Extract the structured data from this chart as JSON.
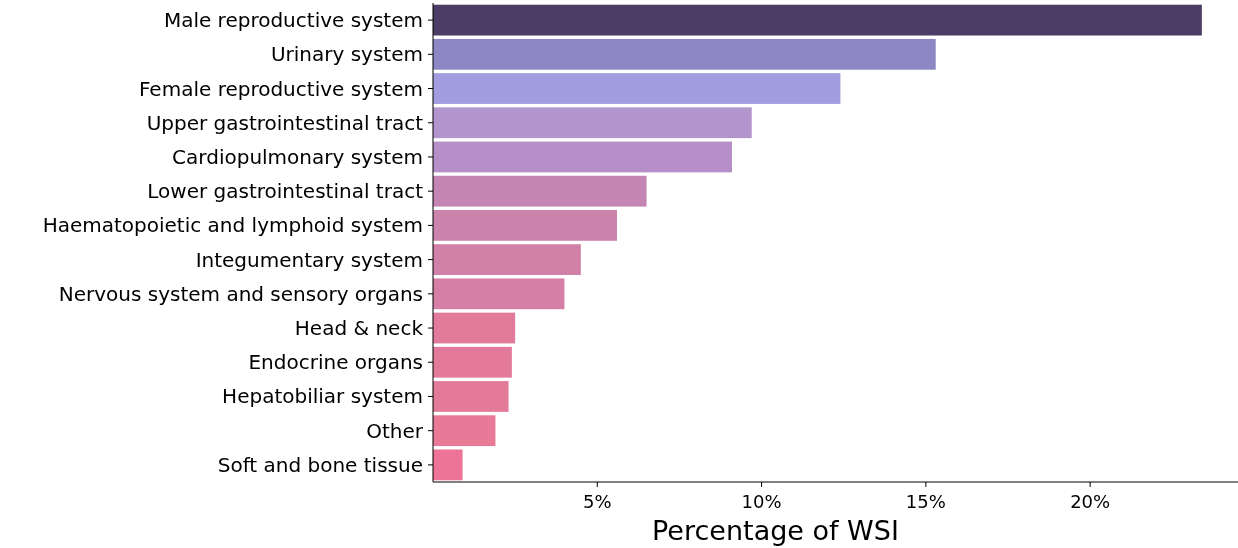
{
  "chart_data": {
    "type": "bar",
    "orientation": "horizontal",
    "xlabel": "Percentage of WSI",
    "categories": [
      "Male reproductive system",
      "Urinary system",
      "Female reproductive system",
      "Upper gastrointestinal tract",
      "Cardiopulmonary system",
      "Lower gastrointestinal tract",
      "Haematopoietic and lymphoid system",
      "Integumentary system",
      "Nervous system and sensory organs",
      "Head & neck",
      "Endocrine organs",
      "Hepatobiliar system",
      "Other",
      "Soft and bone tissue"
    ],
    "values": [
      23.4,
      15.3,
      12.4,
      9.7,
      9.1,
      6.5,
      5.6,
      4.5,
      4.0,
      2.5,
      2.4,
      2.3,
      1.9,
      0.9
    ],
    "colors": [
      "#4b3d66",
      "#8d87c4",
      "#a29de0",
      "#b295cc",
      "#b78fc8",
      "#c585b3",
      "#cc84ad",
      "#d180a8",
      "#d67ea6",
      "#e27a9c",
      "#e47a9b",
      "#e47a9a",
      "#e87a98",
      "#ec7497"
    ],
    "xlim": [
      0,
      24.5
    ],
    "xticks": [
      {
        "value": 5,
        "label": "5%"
      },
      {
        "value": 10,
        "label": "10%"
      },
      {
        "value": 15,
        "label": "15%"
      },
      {
        "value": 20,
        "label": "20%"
      }
    ],
    "grid": false
  }
}
